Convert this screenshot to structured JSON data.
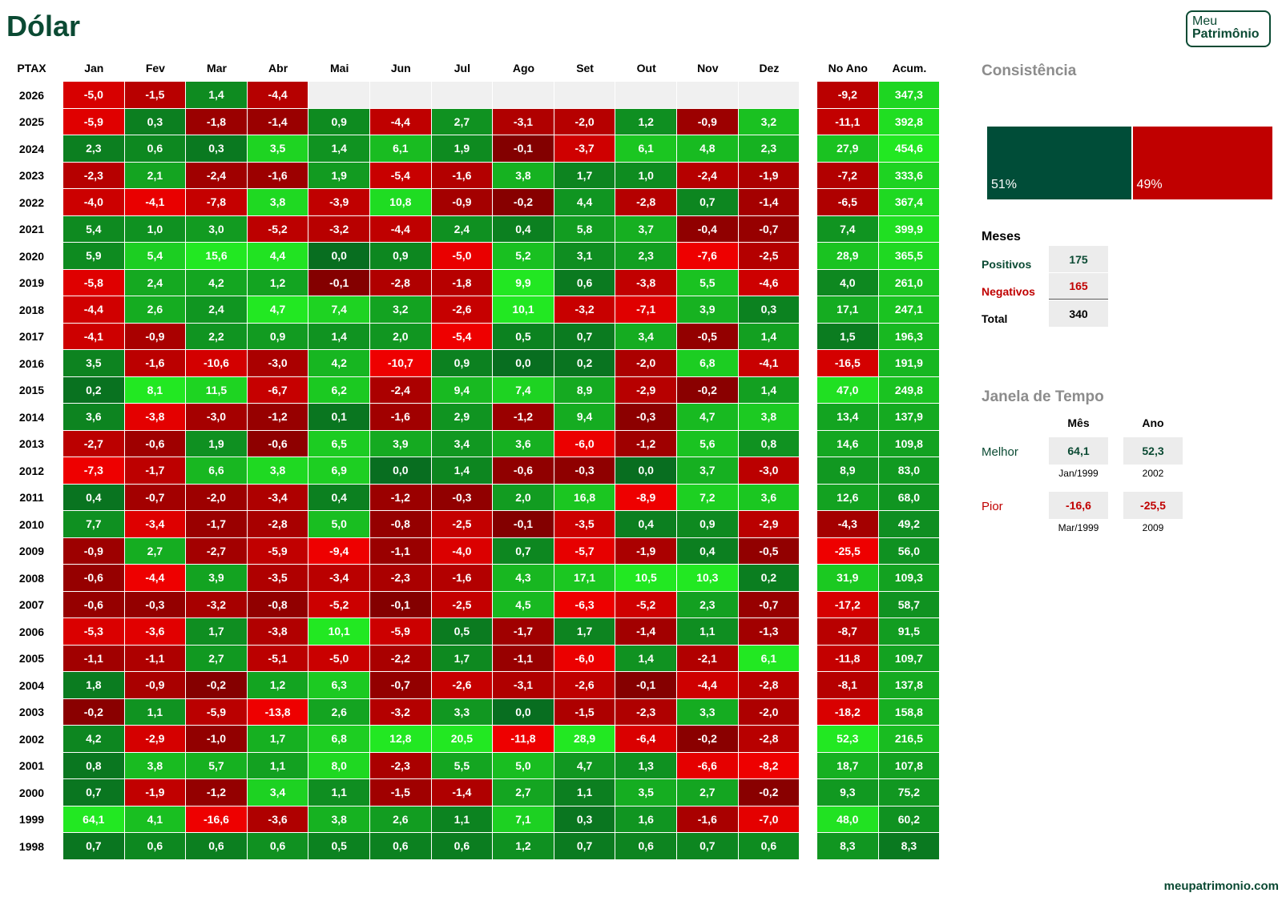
{
  "header": {
    "title": "Dólar",
    "logo": [
      "Meu",
      "Patrimônio"
    ]
  },
  "table": {
    "corner": "PTAX",
    "months": [
      "Jan",
      "Fev",
      "Mar",
      "Abr",
      "Mai",
      "Jun",
      "Jul",
      "Ago",
      "Set",
      "Out",
      "Nov",
      "Dez"
    ],
    "year_total": "No Ano",
    "cumulative": "Acum.",
    "rows": [
      {
        "year": "2026",
        "months": [
          "-5,0",
          "-1,5",
          "1,4",
          "-4,4",
          null,
          null,
          null,
          null,
          null,
          null,
          null,
          null
        ],
        "year_total": "-9,2",
        "cumulative": "347,3"
      },
      {
        "year": "2025",
        "months": [
          "-5,9",
          "0,3",
          "-1,8",
          "-1,4",
          "0,9",
          "-4,4",
          "2,7",
          "-3,1",
          "-2,0",
          "1,2",
          "-0,9",
          "3,2"
        ],
        "year_total": "-11,1",
        "cumulative": "392,8"
      },
      {
        "year": "2024",
        "months": [
          "2,3",
          "0,6",
          "0,3",
          "3,5",
          "1,4",
          "6,1",
          "1,9",
          "-0,1",
          "-3,7",
          "6,1",
          "4,8",
          "2,3"
        ],
        "year_total": "27,9",
        "cumulative": "454,6"
      },
      {
        "year": "2023",
        "months": [
          "-2,3",
          "2,1",
          "-2,4",
          "-1,6",
          "1,9",
          "-5,4",
          "-1,6",
          "3,8",
          "1,7",
          "1,0",
          "-2,4",
          "-1,9"
        ],
        "year_total": "-7,2",
        "cumulative": "333,6"
      },
      {
        "year": "2022",
        "months": [
          "-4,0",
          "-4,1",
          "-7,8",
          "3,8",
          "-3,9",
          "10,8",
          "-0,9",
          "-0,2",
          "4,4",
          "-2,8",
          "0,7",
          "-1,4"
        ],
        "year_total": "-6,5",
        "cumulative": "367,4"
      },
      {
        "year": "2021",
        "months": [
          "5,4",
          "1,0",
          "3,0",
          "-5,2",
          "-3,2",
          "-4,4",
          "2,4",
          "0,4",
          "5,8",
          "3,7",
          "-0,4",
          "-0,7"
        ],
        "year_total": "7,4",
        "cumulative": "399,9"
      },
      {
        "year": "2020",
        "months": [
          "5,9",
          "5,4",
          "15,6",
          "4,4",
          "0,0",
          "0,9",
          "-5,0",
          "5,2",
          "3,1",
          "2,3",
          "-7,6",
          "-2,5"
        ],
        "year_total": "28,9",
        "cumulative": "365,5"
      },
      {
        "year": "2019",
        "months": [
          "-5,8",
          "2,4",
          "4,2",
          "1,2",
          "-0,1",
          "-2,8",
          "-1,8",
          "9,9",
          "0,6",
          "-3,8",
          "5,5",
          "-4,6"
        ],
        "year_total": "4,0",
        "cumulative": "261,0"
      },
      {
        "year": "2018",
        "months": [
          "-4,4",
          "2,6",
          "2,4",
          "4,7",
          "7,4",
          "3,2",
          "-2,6",
          "10,1",
          "-3,2",
          "-7,1",
          "3,9",
          "0,3"
        ],
        "year_total": "17,1",
        "cumulative": "247,1"
      },
      {
        "year": "2017",
        "months": [
          "-4,1",
          "-0,9",
          "2,2",
          "0,9",
          "1,4",
          "2,0",
          "-5,4",
          "0,5",
          "0,7",
          "3,4",
          "-0,5",
          "1,4"
        ],
        "year_total": "1,5",
        "cumulative": "196,3"
      },
      {
        "year": "2016",
        "months": [
          "3,5",
          "-1,6",
          "-10,6",
          "-3,0",
          "4,2",
          "-10,7",
          "0,9",
          "0,0",
          "0,2",
          "-2,0",
          "6,8",
          "-4,1"
        ],
        "year_total": "-16,5",
        "cumulative": "191,9"
      },
      {
        "year": "2015",
        "months": [
          "0,2",
          "8,1",
          "11,5",
          "-6,7",
          "6,2",
          "-2,4",
          "9,4",
          "7,4",
          "8,9",
          "-2,9",
          "-0,2",
          "1,4"
        ],
        "year_total": "47,0",
        "cumulative": "249,8"
      },
      {
        "year": "2014",
        "months": [
          "3,6",
          "-3,8",
          "-3,0",
          "-1,2",
          "0,1",
          "-1,6",
          "2,9",
          "-1,2",
          "9,4",
          "-0,3",
          "4,7",
          "3,8"
        ],
        "year_total": "13,4",
        "cumulative": "137,9"
      },
      {
        "year": "2013",
        "months": [
          "-2,7",
          "-0,6",
          "1,9",
          "-0,6",
          "6,5",
          "3,9",
          "3,4",
          "3,6",
          "-6,0",
          "-1,2",
          "5,6",
          "0,8"
        ],
        "year_total": "14,6",
        "cumulative": "109,8"
      },
      {
        "year": "2012",
        "months": [
          "-7,3",
          "-1,7",
          "6,6",
          "3,8",
          "6,9",
          "0,0",
          "1,4",
          "-0,6",
          "-0,3",
          "0,0",
          "3,7",
          "-3,0"
        ],
        "year_total": "8,9",
        "cumulative": "83,0"
      },
      {
        "year": "2011",
        "months": [
          "0,4",
          "-0,7",
          "-2,0",
          "-3,4",
          "0,4",
          "-1,2",
          "-0,3",
          "2,0",
          "16,8",
          "-8,9",
          "7,2",
          "3,6"
        ],
        "year_total": "12,6",
        "cumulative": "68,0"
      },
      {
        "year": "2010",
        "months": [
          "7,7",
          "-3,4",
          "-1,7",
          "-2,8",
          "5,0",
          "-0,8",
          "-2,5",
          "-0,1",
          "-3,5",
          "0,4",
          "0,9",
          "-2,9"
        ],
        "year_total": "-4,3",
        "cumulative": "49,2"
      },
      {
        "year": "2009",
        "months": [
          "-0,9",
          "2,7",
          "-2,7",
          "-5,9",
          "-9,4",
          "-1,1",
          "-4,0",
          "0,7",
          "-5,7",
          "-1,9",
          "0,4",
          "-0,5"
        ],
        "year_total": "-25,5",
        "cumulative": "56,0"
      },
      {
        "year": "2008",
        "months": [
          "-0,6",
          "-4,4",
          "3,9",
          "-3,5",
          "-3,4",
          "-2,3",
          "-1,6",
          "4,3",
          "17,1",
          "10,5",
          "10,3",
          "0,2"
        ],
        "year_total": "31,9",
        "cumulative": "109,3"
      },
      {
        "year": "2007",
        "months": [
          "-0,6",
          "-0,3",
          "-3,2",
          "-0,8",
          "-5,2",
          "-0,1",
          "-2,5",
          "4,5",
          "-6,3",
          "-5,2",
          "2,3",
          "-0,7"
        ],
        "year_total": "-17,2",
        "cumulative": "58,7"
      },
      {
        "year": "2006",
        "months": [
          "-5,3",
          "-3,6",
          "1,7",
          "-3,8",
          "10,1",
          "-5,9",
          "0,5",
          "-1,7",
          "1,7",
          "-1,4",
          "1,1",
          "-1,3"
        ],
        "year_total": "-8,7",
        "cumulative": "91,5"
      },
      {
        "year": "2005",
        "months": [
          "-1,1",
          "-1,1",
          "2,7",
          "-5,1",
          "-5,0",
          "-2,2",
          "1,7",
          "-1,1",
          "-6,0",
          "1,4",
          "-2,1",
          "6,1"
        ],
        "year_total": "-11,8",
        "cumulative": "109,7"
      },
      {
        "year": "2004",
        "months": [
          "1,8",
          "-0,9",
          "-0,2",
          "1,2",
          "6,3",
          "-0,7",
          "-2,6",
          "-3,1",
          "-2,6",
          "-0,1",
          "-4,4",
          "-2,8"
        ],
        "year_total": "-8,1",
        "cumulative": "137,8"
      },
      {
        "year": "2003",
        "months": [
          "-0,2",
          "1,1",
          "-5,9",
          "-13,8",
          "2,6",
          "-3,2",
          "3,3",
          "0,0",
          "-1,5",
          "-2,3",
          "3,3",
          "-2,0"
        ],
        "year_total": "-18,2",
        "cumulative": "158,8"
      },
      {
        "year": "2002",
        "months": [
          "4,2",
          "-2,9",
          "-1,0",
          "1,7",
          "6,8",
          "12,8",
          "20,5",
          "-11,8",
          "28,9",
          "-6,4",
          "-0,2",
          "-2,8"
        ],
        "year_total": "52,3",
        "cumulative": "216,5"
      },
      {
        "year": "2001",
        "months": [
          "0,8",
          "3,8",
          "5,7",
          "1,1",
          "8,0",
          "-2,3",
          "5,5",
          "5,0",
          "4,7",
          "1,3",
          "-6,6",
          "-8,2"
        ],
        "year_total": "18,7",
        "cumulative": "107,8"
      },
      {
        "year": "2000",
        "months": [
          "0,7",
          "-1,9",
          "-1,2",
          "3,4",
          "1,1",
          "-1,5",
          "-1,4",
          "2,7",
          "1,1",
          "3,5",
          "2,7",
          "-0,2"
        ],
        "year_total": "9,3",
        "cumulative": "75,2"
      },
      {
        "year": "1999",
        "months": [
          "64,1",
          "4,1",
          "-16,6",
          "-3,6",
          "3,8",
          "2,6",
          "1,1",
          "7,1",
          "0,3",
          "1,6",
          "-1,6",
          "-7,0"
        ],
        "year_total": "48,0",
        "cumulative": "60,2"
      },
      {
        "year": "1998",
        "months": [
          "0,7",
          "0,6",
          "0,6",
          "0,6",
          "0,5",
          "0,6",
          "0,6",
          "1,2",
          "0,7",
          "0,6",
          "0,7",
          "0,6"
        ],
        "year_total": "8,3",
        "cumulative": "8,3"
      }
    ]
  },
  "consistency": {
    "title": "Consistência",
    "positive": {
      "value": 51,
      "label": "51%",
      "color": "#004d38"
    },
    "negative": {
      "value": 49,
      "label": "49%",
      "color": "#c00000"
    }
  },
  "months_summary": {
    "title": "Meses",
    "rows": [
      {
        "label": "Positivos",
        "value": "175"
      },
      {
        "label": "Negativos",
        "value": "165"
      },
      {
        "label": "Total",
        "value": "340"
      }
    ]
  },
  "time_window": {
    "title": "Janela de Tempo",
    "columns": [
      "Mês",
      "Ano"
    ],
    "rows": [
      {
        "label": "Melhor",
        "month": "64,1",
        "month_date": "Jan/1999",
        "year": "52,3",
        "year_date": "2002"
      },
      {
        "label": "Pior",
        "month": "-16,6",
        "month_date": "Mar/1999",
        "year": "-25,5",
        "year_date": "2009"
      }
    ]
  },
  "footer": "meupatrimonio.com"
}
